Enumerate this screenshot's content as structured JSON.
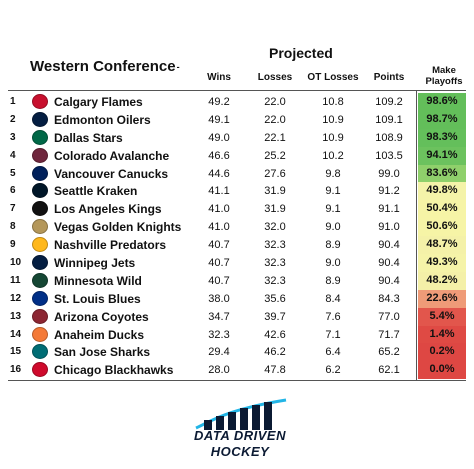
{
  "header": {
    "title": "Western Conference",
    "title_glyph": "-",
    "projected": "Projected",
    "columns": {
      "wins": "Wins",
      "losses": "Losses",
      "ot_losses": "OT Losses",
      "points": "Points",
      "make_playoffs_1": "Make",
      "make_playoffs_2": "Playoffs"
    }
  },
  "teams": [
    {
      "rank": "1",
      "name": "Calgary Flames",
      "wins": "49.2",
      "losses": "22.0",
      "otl": "10.8",
      "pts": "109.2",
      "pct": "98.6%",
      "logo": "calgary-flames-logo",
      "color": "#c8102e",
      "bg": "#63be5a"
    },
    {
      "rank": "2",
      "name": "Edmonton Oilers",
      "wins": "49.1",
      "losses": "22.0",
      "otl": "10.9",
      "pts": "109.1",
      "pct": "98.7%",
      "logo": "edmonton-oilers-logo",
      "color": "#041e42",
      "bg": "#63be5a"
    },
    {
      "rank": "3",
      "name": "Dallas Stars",
      "wins": "49.0",
      "losses": "22.1",
      "otl": "10.9",
      "pts": "108.9",
      "pct": "98.3%",
      "logo": "dallas-stars-logo",
      "color": "#006847",
      "bg": "#64bf5b"
    },
    {
      "rank": "4",
      "name": "Colorado Avalanche",
      "wins": "46.6",
      "losses": "25.2",
      "otl": "10.2",
      "pts": "103.5",
      "pct": "94.1%",
      "logo": "colorado-avalanche-logo",
      "color": "#6f263d",
      "bg": "#6cc25e"
    },
    {
      "rank": "5",
      "name": "Vancouver Canucks",
      "wins": "44.6",
      "losses": "27.6",
      "otl": "9.8",
      "pts": "99.0",
      "pct": "83.6%",
      "logo": "vancouver-canucks-logo",
      "color": "#00205b",
      "bg": "#8fd06b"
    },
    {
      "rank": "6",
      "name": "Seattle Kraken",
      "wins": "41.1",
      "losses": "31.9",
      "otl": "9.1",
      "pts": "91.2",
      "pct": "49.8%",
      "logo": "seattle-kraken-logo",
      "color": "#001628",
      "bg": "#f4f3a9"
    },
    {
      "rank": "7",
      "name": "Los Angeles Kings",
      "wins": "41.0",
      "losses": "31.9",
      "otl": "9.1",
      "pts": "91.1",
      "pct": "50.4%",
      "logo": "los-angeles-kings-logo",
      "color": "#111111",
      "bg": "#f6f4a6"
    },
    {
      "rank": "8",
      "name": "Vegas Golden Knights",
      "wins": "41.0",
      "losses": "32.0",
      "otl": "9.0",
      "pts": "91.0",
      "pct": "50.6%",
      "logo": "vegas-golden-knights-logo",
      "color": "#b4975a",
      "bg": "#f6f4a6"
    },
    {
      "rank": "9",
      "name": "Nashville Predators",
      "wins": "40.7",
      "losses": "32.3",
      "otl": "8.9",
      "pts": "90.4",
      "pct": "48.7%",
      "logo": "nashville-predators-logo",
      "color": "#ffb81c",
      "bg": "#f4f1a8"
    },
    {
      "rank": "10",
      "name": "Winnipeg Jets",
      "wins": "40.7",
      "losses": "32.3",
      "otl": "9.0",
      "pts": "90.4",
      "pct": "49.3%",
      "logo": "winnipeg-jets-logo",
      "color": "#041e42",
      "bg": "#f5f3a8"
    },
    {
      "rank": "11",
      "name": "Minnesota Wild",
      "wins": "40.7",
      "losses": "32.3",
      "otl": "8.9",
      "pts": "90.4",
      "pct": "48.2%",
      "logo": "minnesota-wild-logo",
      "color": "#154734",
      "bg": "#f4f0a8"
    },
    {
      "rank": "12",
      "name": "St. Louis Blues",
      "wins": "38.0",
      "losses": "35.6",
      "otl": "8.4",
      "pts": "84.3",
      "pct": "22.6%",
      "logo": "st-louis-blues-logo",
      "color": "#002f87",
      "bg": "#ef9b78"
    },
    {
      "rank": "13",
      "name": "Arizona Coyotes",
      "wins": "34.7",
      "losses": "39.7",
      "otl": "7.6",
      "pts": "77.0",
      "pct": "5.4%",
      "logo": "arizona-coyotes-logo",
      "color": "#8c2633",
      "bg": "#e2564c"
    },
    {
      "rank": "14",
      "name": "Anaheim Ducks",
      "wins": "32.3",
      "losses": "42.6",
      "otl": "7.1",
      "pts": "71.7",
      "pct": "1.4%",
      "logo": "anaheim-ducks-logo",
      "color": "#f47a38",
      "bg": "#df4a44"
    },
    {
      "rank": "15",
      "name": "San Jose Sharks",
      "wins": "29.4",
      "losses": "46.2",
      "otl": "6.4",
      "pts": "65.2",
      "pct": "0.2%",
      "logo": "san-jose-sharks-logo",
      "color": "#006d75",
      "bg": "#de4743"
    },
    {
      "rank": "16",
      "name": "Chicago Blackhawks",
      "wins": "28.0",
      "losses": "47.8",
      "otl": "6.2",
      "pts": "62.1",
      "pct": "0.0%",
      "logo": "chicago-blackhawks-logo",
      "color": "#cf0a2c",
      "bg": "#de4743"
    }
  ],
  "brand": {
    "line1": "DATA DRIVEN",
    "line2": "HOCKEY",
    "logo": "data-driven-hockey-logo"
  }
}
